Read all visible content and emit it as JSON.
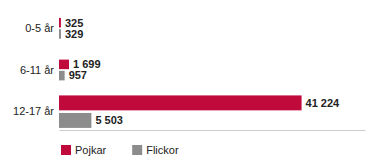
{
  "chart_data": {
    "type": "bar",
    "orientation": "horizontal",
    "categories": [
      "0-5 år",
      "6-11 år",
      "12-17 år"
    ],
    "series": [
      {
        "name": "Pojkar",
        "color": "#c00a3c",
        "values": [
          325,
          1699,
          41224
        ],
        "value_labels": [
          "325",
          "1 699",
          "41 224"
        ]
      },
      {
        "name": "Flickor",
        "color": "#8c8c8c",
        "values": [
          329,
          957,
          5503
        ],
        "value_labels": [
          "329",
          "957",
          "5 503"
        ]
      }
    ],
    "xlim": [
      0,
      52000
    ],
    "xticks": [],
    "data_labels": true,
    "tick_labels": "y",
    "grid": false,
    "legend": "bottom-left"
  }
}
